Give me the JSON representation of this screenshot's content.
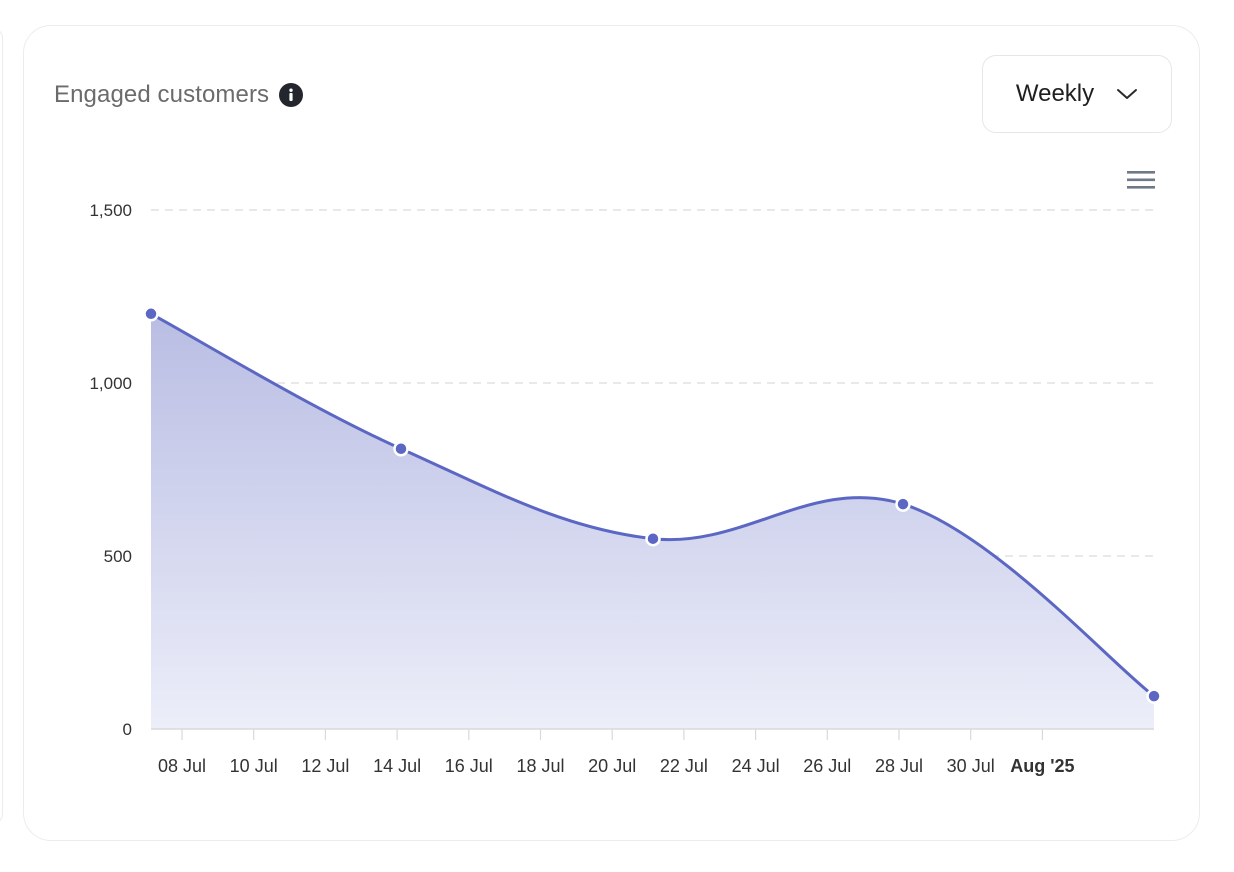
{
  "card": {
    "title": "Engaged customers",
    "info_icon": "info-icon",
    "period_dropdown": {
      "selected": "Weekly",
      "icon": "chevron-down-icon"
    },
    "chart_menu_icon": "hamburger-menu-icon"
  },
  "colors": {
    "line": "#5c67c4",
    "fill_top": "#b9bde3",
    "fill_bottom": "#eceef9",
    "grid": "#dcdcdc",
    "axis": "#d9d9d9"
  },
  "chart_data": {
    "type": "area",
    "title": "Engaged customers",
    "xlabel": "",
    "ylabel": "",
    "ylim": [
      0,
      1500
    ],
    "yticks": [
      "0",
      "500",
      "1,000",
      "1,500"
    ],
    "xticks": [
      "08 Jul",
      "10 Jul",
      "12 Jul",
      "14 Jul",
      "16 Jul",
      "18 Jul",
      "20 Jul",
      "22 Jul",
      "24 Jul",
      "26 Jul",
      "28 Jul",
      "30 Jul",
      "Aug '25"
    ],
    "grid": "horizontal dashed",
    "legend": "none",
    "smooth": true,
    "series": [
      {
        "name": "Engaged customers",
        "x": [
          "07 Jul",
          "14 Jul",
          "21 Jul",
          "28 Jul",
          "04 Aug"
        ],
        "values": [
          1200,
          810,
          550,
          650,
          95
        ]
      }
    ]
  }
}
